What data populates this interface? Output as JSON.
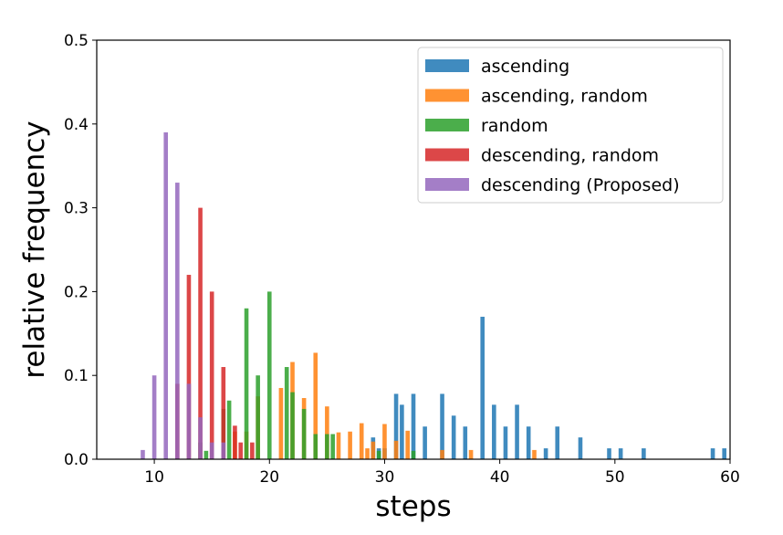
{
  "chart_data": {
    "type": "bar",
    "title": "",
    "xlabel": "steps",
    "ylabel": "relative frequency",
    "xlim": [
      5,
      60
    ],
    "ylim": [
      0,
      0.5
    ],
    "xticks": [
      10,
      20,
      30,
      40,
      50,
      60
    ],
    "yticks": [
      0.0,
      0.1,
      0.2,
      0.3,
      0.4,
      0.5
    ],
    "xtick_labels": [
      "10",
      "20",
      "30",
      "40",
      "50",
      "60"
    ],
    "ytick_labels": [
      "0.0",
      "0.1",
      "0.2",
      "0.3",
      "0.4",
      "0.5"
    ],
    "legend_position": "top-right",
    "series": [
      {
        "name": "ascending",
        "color": "#1f77b4",
        "points": [
          [
            29,
            0.026
          ],
          [
            29.5,
            0.013
          ],
          [
            30,
            0.013
          ],
          [
            31,
            0.078
          ],
          [
            31.5,
            0.065
          ],
          [
            32.5,
            0.078
          ],
          [
            33.5,
            0.039
          ],
          [
            35,
            0.078
          ],
          [
            36,
            0.052
          ],
          [
            37,
            0.039
          ],
          [
            38.5,
            0.17
          ],
          [
            39.5,
            0.065
          ],
          [
            40.5,
            0.039
          ],
          [
            41.5,
            0.065
          ],
          [
            42.5,
            0.039
          ],
          [
            44,
            0.013
          ],
          [
            45,
            0.039
          ],
          [
            47,
            0.026
          ],
          [
            49.5,
            0.013
          ],
          [
            50.5,
            0.013
          ],
          [
            52.5,
            0.013
          ],
          [
            58.5,
            0.013
          ],
          [
            59.5,
            0.013
          ]
        ]
      },
      {
        "name": "ascending, random",
        "color": "#ff7f0e",
        "points": [
          [
            17,
            0.033
          ],
          [
            18,
            0.033
          ],
          [
            19,
            0.075
          ],
          [
            21,
            0.085
          ],
          [
            22,
            0.116
          ],
          [
            23,
            0.073
          ],
          [
            24,
            0.127
          ],
          [
            25,
            0.063
          ],
          [
            26,
            0.032
          ],
          [
            27,
            0.033
          ],
          [
            28,
            0.043
          ],
          [
            28.5,
            0.013
          ],
          [
            29,
            0.021
          ],
          [
            30,
            0.042
          ],
          [
            31,
            0.022
          ],
          [
            32,
            0.034
          ],
          [
            35,
            0.011
          ],
          [
            37.5,
            0.011
          ],
          [
            43,
            0.011
          ]
        ]
      },
      {
        "name": "random",
        "color": "#2ca02c",
        "points": [
          [
            14,
            0.02
          ],
          [
            14.5,
            0.01
          ],
          [
            16,
            0.06
          ],
          [
            16.5,
            0.07
          ],
          [
            18,
            0.18
          ],
          [
            19,
            0.1
          ],
          [
            20,
            0.2
          ],
          [
            21.5,
            0.11
          ],
          [
            22,
            0.08
          ],
          [
            23,
            0.06
          ],
          [
            24,
            0.03
          ],
          [
            25,
            0.03
          ],
          [
            25.5,
            0.03
          ],
          [
            29.5,
            0.01
          ],
          [
            32.5,
            0.01
          ]
        ]
      },
      {
        "name": "descending, random",
        "color": "#d62728",
        "points": [
          [
            12,
            0.09
          ],
          [
            13,
            0.22
          ],
          [
            14,
            0.3
          ],
          [
            15,
            0.2
          ],
          [
            16,
            0.11
          ],
          [
            17,
            0.04
          ],
          [
            17.5,
            0.02
          ],
          [
            18.5,
            0.02
          ]
        ]
      },
      {
        "name": "descending (Proposed)",
        "color": "#9467bd",
        "points": [
          [
            9,
            0.011
          ],
          [
            10,
            0.1
          ],
          [
            11,
            0.39
          ],
          [
            12,
            0.33
          ],
          [
            13,
            0.09
          ],
          [
            14,
            0.05
          ],
          [
            15,
            0.02
          ],
          [
            16,
            0.02
          ]
        ]
      }
    ]
  }
}
